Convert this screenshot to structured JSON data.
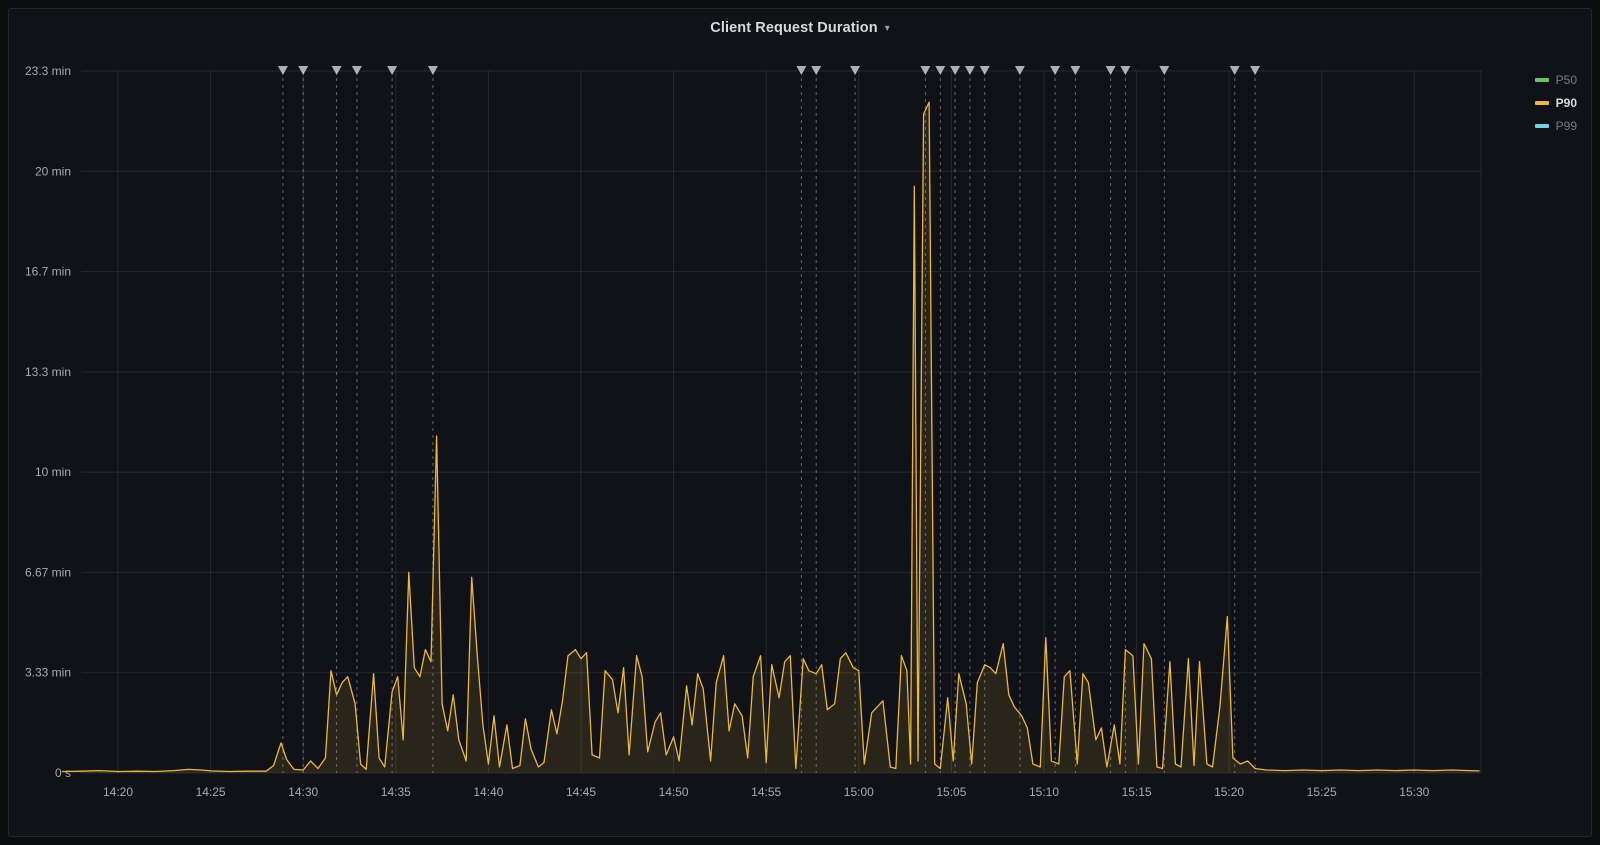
{
  "panel": {
    "title": "Client Request Duration",
    "chevron_icon": "▾"
  },
  "colors": {
    "page_background": "#0b0c0e",
    "panel_background": "#111217",
    "panel_border": "#25272e",
    "grid": "rgba(204,204,220,0.12)",
    "tick_label": "#a6aab2",
    "annotation_line": "rgba(204,204,220,0.45)",
    "annotation_marker": "rgba(201,203,208,0.85)",
    "title_text": "#d8d9da"
  },
  "chart_data": {
    "type": "line",
    "title": "Client Request Duration",
    "x_unit": "minutes_after_14:00",
    "y_unit": "minutes",
    "xlim": [
      18,
      93.6
    ],
    "ylim": [
      0,
      23.333
    ],
    "grid": true,
    "legend_position": "right-top",
    "x_ticks": [
      {
        "m": 20,
        "label": "14:20"
      },
      {
        "m": 25,
        "label": "14:25"
      },
      {
        "m": 30,
        "label": "14:30"
      },
      {
        "m": 35,
        "label": "14:35"
      },
      {
        "m": 40,
        "label": "14:40"
      },
      {
        "m": 45,
        "label": "14:45"
      },
      {
        "m": 50,
        "label": "14:50"
      },
      {
        "m": 55,
        "label": "14:55"
      },
      {
        "m": 60,
        "label": "15:00"
      },
      {
        "m": 65,
        "label": "15:05"
      },
      {
        "m": 70,
        "label": "15:10"
      },
      {
        "m": 75,
        "label": "15:15"
      },
      {
        "m": 80,
        "label": "15:20"
      },
      {
        "m": 85,
        "label": "15:25"
      },
      {
        "m": 90,
        "label": "15:30"
      }
    ],
    "y_ticks": [
      {
        "v": 0,
        "label": "0 s"
      },
      {
        "v": 3.333,
        "label": "3.33 min"
      },
      {
        "v": 6.667,
        "label": "6.67 min"
      },
      {
        "v": 10,
        "label": "10 min"
      },
      {
        "v": 13.333,
        "label": "13.3 min"
      },
      {
        "v": 16.667,
        "label": "16.7 min"
      },
      {
        "v": 20,
        "label": "20 min"
      },
      {
        "v": 23.333,
        "label": "23.3 min"
      }
    ],
    "legend": [
      {
        "name": "P50",
        "color": "#73BF69",
        "active": false
      },
      {
        "name": "P90",
        "color": "#EAB839",
        "active": true
      },
      {
        "name": "P99",
        "color": "#6ED0E0",
        "active": false
      }
    ],
    "annotations_x": [
      28.9,
      30.0,
      31.8,
      32.9,
      34.8,
      37.0,
      56.9,
      57.7,
      59.8,
      63.6,
      64.4,
      65.2,
      66.0,
      66.8,
      68.7,
      70.6,
      71.7,
      73.6,
      74.4,
      76.5,
      80.3,
      81.4
    ],
    "series": [
      {
        "name": "P90",
        "color": "#EAB839",
        "fill": "rgba(234,184,57,0.12)",
        "points": [
          [
            17,
            0.05
          ],
          [
            18,
            0.06
          ],
          [
            19,
            0.08
          ],
          [
            20,
            0.05
          ],
          [
            21,
            0.06
          ],
          [
            22,
            0.05
          ],
          [
            23,
            0.08
          ],
          [
            23.8,
            0.12
          ],
          [
            24.5,
            0.1
          ],
          [
            25,
            0.07
          ],
          [
            26,
            0.05
          ],
          [
            27,
            0.06
          ],
          [
            28,
            0.06
          ],
          [
            28.4,
            0.25
          ],
          [
            28.8,
            1.0
          ],
          [
            29.1,
            0.45
          ],
          [
            29.5,
            0.12
          ],
          [
            30,
            0.1
          ],
          [
            30.4,
            0.4
          ],
          [
            30.8,
            0.15
          ],
          [
            31.2,
            0.5
          ],
          [
            31.5,
            3.4
          ],
          [
            31.8,
            2.6
          ],
          [
            32.1,
            3.0
          ],
          [
            32.4,
            3.2
          ],
          [
            32.8,
            2.3
          ],
          [
            33.1,
            0.3
          ],
          [
            33.4,
            0.12
          ],
          [
            33.8,
            3.3
          ],
          [
            34.1,
            0.5
          ],
          [
            34.4,
            0.2
          ],
          [
            34.8,
            2.7
          ],
          [
            35.1,
            3.2
          ],
          [
            35.4,
            1.1
          ],
          [
            35.7,
            6.67
          ],
          [
            36,
            3.5
          ],
          [
            36.3,
            3.2
          ],
          [
            36.6,
            4.1
          ],
          [
            36.9,
            3.7
          ],
          [
            37.2,
            11.2
          ],
          [
            37.5,
            2.3
          ],
          [
            37.8,
            1.4
          ],
          [
            38.1,
            2.6
          ],
          [
            38.4,
            1.1
          ],
          [
            38.8,
            0.4
          ],
          [
            39.1,
            6.5
          ],
          [
            39.4,
            3.9
          ],
          [
            39.7,
            1.6
          ],
          [
            40,
            0.3
          ],
          [
            40.3,
            1.9
          ],
          [
            40.6,
            0.2
          ],
          [
            41,
            1.6
          ],
          [
            41.3,
            0.15
          ],
          [
            41.7,
            0.25
          ],
          [
            42,
            1.8
          ],
          [
            42.3,
            0.8
          ],
          [
            42.7,
            0.2
          ],
          [
            43,
            0.35
          ],
          [
            43.4,
            2.1
          ],
          [
            43.7,
            1.3
          ],
          [
            44,
            2.4
          ],
          [
            44.3,
            3.9
          ],
          [
            44.7,
            4.1
          ],
          [
            45,
            3.8
          ],
          [
            45.3,
            4.0
          ],
          [
            45.6,
            0.6
          ],
          [
            46,
            0.5
          ],
          [
            46.3,
            3.4
          ],
          [
            46.7,
            3.1
          ],
          [
            47,
            2.0
          ],
          [
            47.3,
            3.5
          ],
          [
            47.6,
            0.6
          ],
          [
            48,
            3.9
          ],
          [
            48.3,
            3.2
          ],
          [
            48.6,
            0.7
          ],
          [
            49,
            1.7
          ],
          [
            49.3,
            2.0
          ],
          [
            49.6,
            0.6
          ],
          [
            50,
            1.2
          ],
          [
            50.3,
            0.4
          ],
          [
            50.7,
            2.9
          ],
          [
            51,
            1.6
          ],
          [
            51.3,
            3.3
          ],
          [
            51.6,
            2.8
          ],
          [
            52,
            0.4
          ],
          [
            52.3,
            3.0
          ],
          [
            52.7,
            3.9
          ],
          [
            53,
            1.4
          ],
          [
            53.3,
            2.3
          ],
          [
            53.7,
            1.9
          ],
          [
            54,
            0.5
          ],
          [
            54.3,
            3.2
          ],
          [
            54.7,
            3.9
          ],
          [
            55,
            0.35
          ],
          [
            55.3,
            3.6
          ],
          [
            55.7,
            2.5
          ],
          [
            56,
            3.7
          ],
          [
            56.3,
            3.9
          ],
          [
            56.6,
            0.15
          ],
          [
            57,
            3.8
          ],
          [
            57.3,
            3.4
          ],
          [
            57.7,
            3.3
          ],
          [
            58,
            3.6
          ],
          [
            58.3,
            2.1
          ],
          [
            58.7,
            2.3
          ],
          [
            59,
            3.8
          ],
          [
            59.3,
            4.0
          ],
          [
            59.7,
            3.5
          ],
          [
            60,
            3.4
          ],
          [
            60.3,
            0.3
          ],
          [
            60.7,
            2.0
          ],
          [
            61,
            2.2
          ],
          [
            61.3,
            2.4
          ],
          [
            61.7,
            0.2
          ],
          [
            62,
            0.15
          ],
          [
            62.3,
            3.9
          ],
          [
            62.6,
            3.4
          ],
          [
            62.8,
            0.3
          ],
          [
            63,
            19.5
          ],
          [
            63.2,
            0.4
          ],
          [
            63.5,
            21.9
          ],
          [
            63.8,
            22.3
          ],
          [
            64.1,
            0.3
          ],
          [
            64.4,
            0.15
          ],
          [
            64.8,
            2.5
          ],
          [
            65.1,
            0.4
          ],
          [
            65.4,
            3.3
          ],
          [
            65.8,
            2.3
          ],
          [
            66.1,
            0.3
          ],
          [
            66.4,
            3.0
          ],
          [
            66.8,
            3.6
          ],
          [
            67.1,
            3.5
          ],
          [
            67.4,
            3.3
          ],
          [
            67.8,
            4.3
          ],
          [
            68.1,
            2.6
          ],
          [
            68.4,
            2.2
          ],
          [
            68.8,
            1.9
          ],
          [
            69.1,
            1.5
          ],
          [
            69.4,
            0.3
          ],
          [
            69.8,
            0.2
          ],
          [
            70.1,
            4.5
          ],
          [
            70.4,
            0.4
          ],
          [
            70.8,
            0.3
          ],
          [
            71.1,
            3.2
          ],
          [
            71.4,
            3.4
          ],
          [
            71.8,
            0.3
          ],
          [
            72.1,
            3.3
          ],
          [
            72.4,
            3.0
          ],
          [
            72.8,
            1.1
          ],
          [
            73.1,
            1.5
          ],
          [
            73.4,
            0.2
          ],
          [
            73.8,
            1.6
          ],
          [
            74.1,
            0.3
          ],
          [
            74.4,
            4.1
          ],
          [
            74.8,
            3.9
          ],
          [
            75.1,
            0.3
          ],
          [
            75.4,
            4.3
          ],
          [
            75.8,
            3.8
          ],
          [
            76.1,
            0.2
          ],
          [
            76.4,
            0.15
          ],
          [
            76.8,
            3.7
          ],
          [
            77.1,
            0.3
          ],
          [
            77.4,
            0.2
          ],
          [
            77.8,
            3.8
          ],
          [
            78.1,
            0.25
          ],
          [
            78.4,
            3.7
          ],
          [
            78.8,
            0.3
          ],
          [
            79.1,
            0.2
          ],
          [
            79.5,
            2.2
          ],
          [
            79.9,
            5.2
          ],
          [
            80.2,
            0.5
          ],
          [
            80.6,
            0.3
          ],
          [
            81,
            0.4
          ],
          [
            81.4,
            0.15
          ],
          [
            82,
            0.1
          ],
          [
            83,
            0.08
          ],
          [
            84,
            0.1
          ],
          [
            85,
            0.08
          ],
          [
            86,
            0.1
          ],
          [
            87,
            0.08
          ],
          [
            88,
            0.1
          ],
          [
            89,
            0.08
          ],
          [
            90,
            0.1
          ],
          [
            91,
            0.08
          ],
          [
            92,
            0.1
          ],
          [
            93,
            0.08
          ],
          [
            93.5,
            0.07
          ]
        ]
      }
    ]
  }
}
